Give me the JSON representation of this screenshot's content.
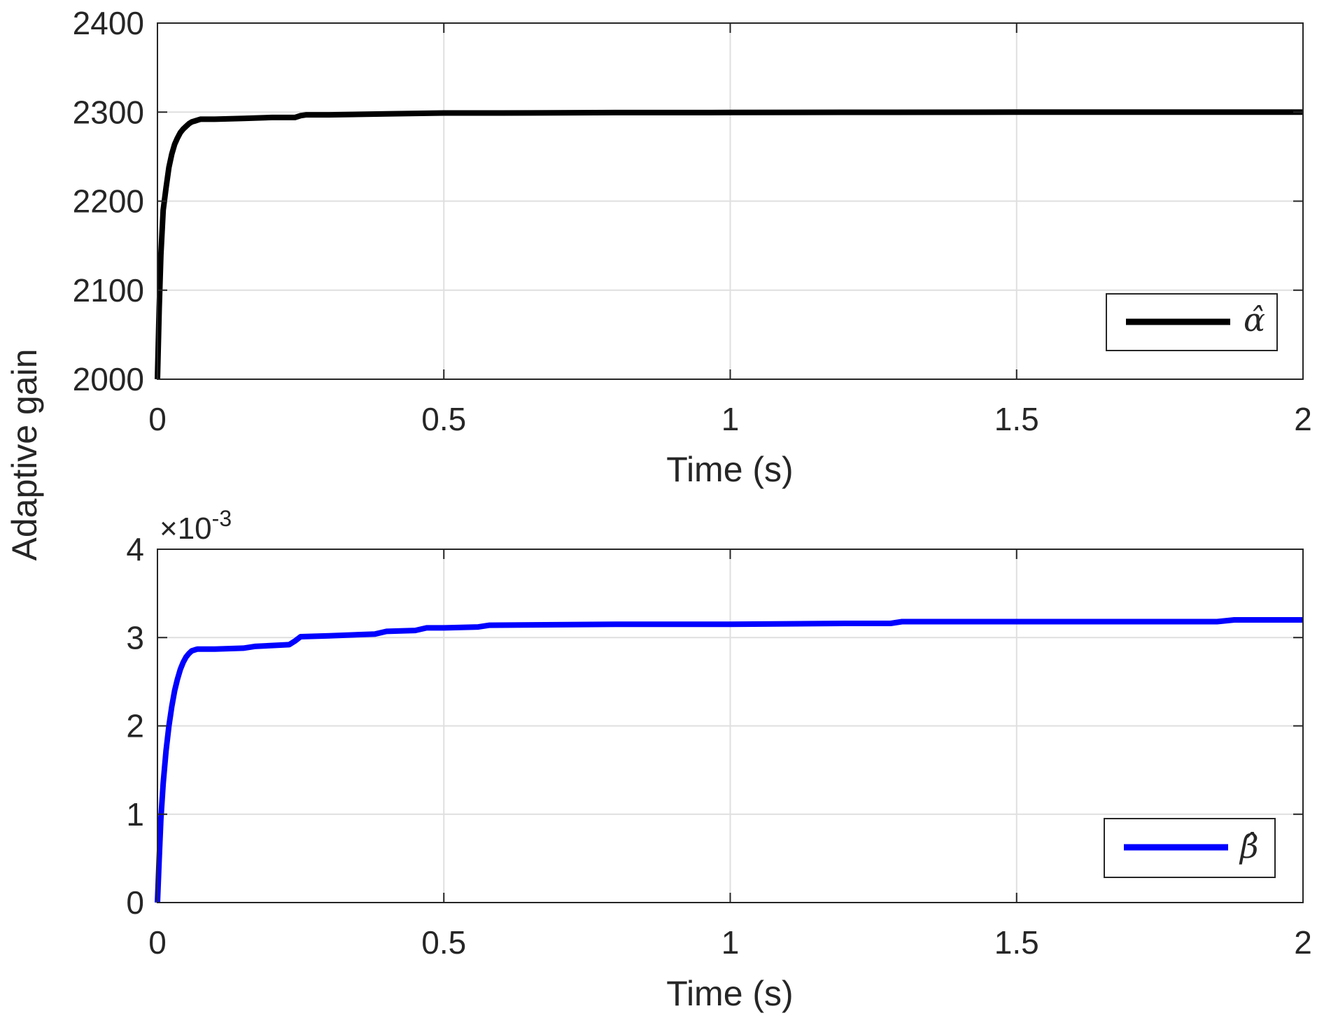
{
  "figure": {
    "ylabel": "Adaptive gain"
  },
  "chart_data": [
    {
      "type": "line",
      "xlabel": "Time (s)",
      "xlim": [
        0,
        2
      ],
      "ylim": [
        2000,
        2400
      ],
      "x_ticks": [
        "0",
        "0.5",
        "1",
        "1.5",
        "2"
      ],
      "y_ticks": [
        "2000",
        "2100",
        "2200",
        "2300",
        "2400"
      ],
      "grid": true,
      "legend_position": "bottom-right",
      "series": [
        {
          "name": "α̂",
          "color": "#000000",
          "x": [
            0,
            0.003,
            0.006,
            0.01,
            0.015,
            0.02,
            0.025,
            0.03,
            0.035,
            0.04,
            0.045,
            0.05,
            0.055,
            0.06,
            0.065,
            0.07,
            0.075,
            0.08,
            0.1,
            0.15,
            0.2,
            0.24,
            0.25,
            0.26,
            0.3,
            0.4,
            0.5,
            0.6,
            0.8,
            1.0,
            1.2,
            1.5,
            1.8,
            2.0
          ],
          "y": [
            2000,
            2080,
            2140,
            2190,
            2215,
            2238,
            2253,
            2264,
            2271,
            2277,
            2281,
            2284,
            2287,
            2289,
            2290,
            2291,
            2292,
            2292,
            2292,
            2293,
            2294,
            2294,
            2296,
            2297,
            2297,
            2298,
            2299,
            2299,
            2299.5,
            2299.6,
            2299.8,
            2300,
            2300,
            2300
          ]
        }
      ]
    },
    {
      "type": "line",
      "xlabel": "Time (s)",
      "xlim": [
        0,
        2
      ],
      "ylim": [
        0,
        4
      ],
      "y_scale_factor": "×10^-3",
      "exponent_prefix": "×",
      "exponent_base": "10",
      "exponent_power": "-3",
      "x_ticks": [
        "0",
        "0.5",
        "1",
        "1.5",
        "2"
      ],
      "y_ticks": [
        "0",
        "1",
        "2",
        "3",
        "4"
      ],
      "grid": true,
      "legend_position": "bottom-right",
      "series": [
        {
          "name": "β̂",
          "color": "#0000ff",
          "x": [
            0,
            0.003,
            0.006,
            0.01,
            0.015,
            0.02,
            0.025,
            0.03,
            0.035,
            0.04,
            0.045,
            0.05,
            0.055,
            0.06,
            0.065,
            0.07,
            0.075,
            0.1,
            0.15,
            0.17,
            0.2,
            0.23,
            0.24,
            0.25,
            0.3,
            0.38,
            0.4,
            0.45,
            0.47,
            0.5,
            0.56,
            0.58,
            0.8,
            1.0,
            1.2,
            1.28,
            1.3,
            1.5,
            1.85,
            1.88,
            2.0
          ],
          "y": [
            0,
            0.5,
            0.95,
            1.35,
            1.72,
            2.0,
            2.22,
            2.4,
            2.53,
            2.64,
            2.72,
            2.78,
            2.82,
            2.85,
            2.86,
            2.87,
            2.87,
            2.87,
            2.88,
            2.9,
            2.91,
            2.92,
            2.96,
            3.01,
            3.02,
            3.04,
            3.07,
            3.08,
            3.11,
            3.11,
            3.12,
            3.14,
            3.15,
            3.15,
            3.16,
            3.16,
            3.18,
            3.18,
            3.18,
            3.2,
            3.2
          ]
        }
      ]
    }
  ]
}
